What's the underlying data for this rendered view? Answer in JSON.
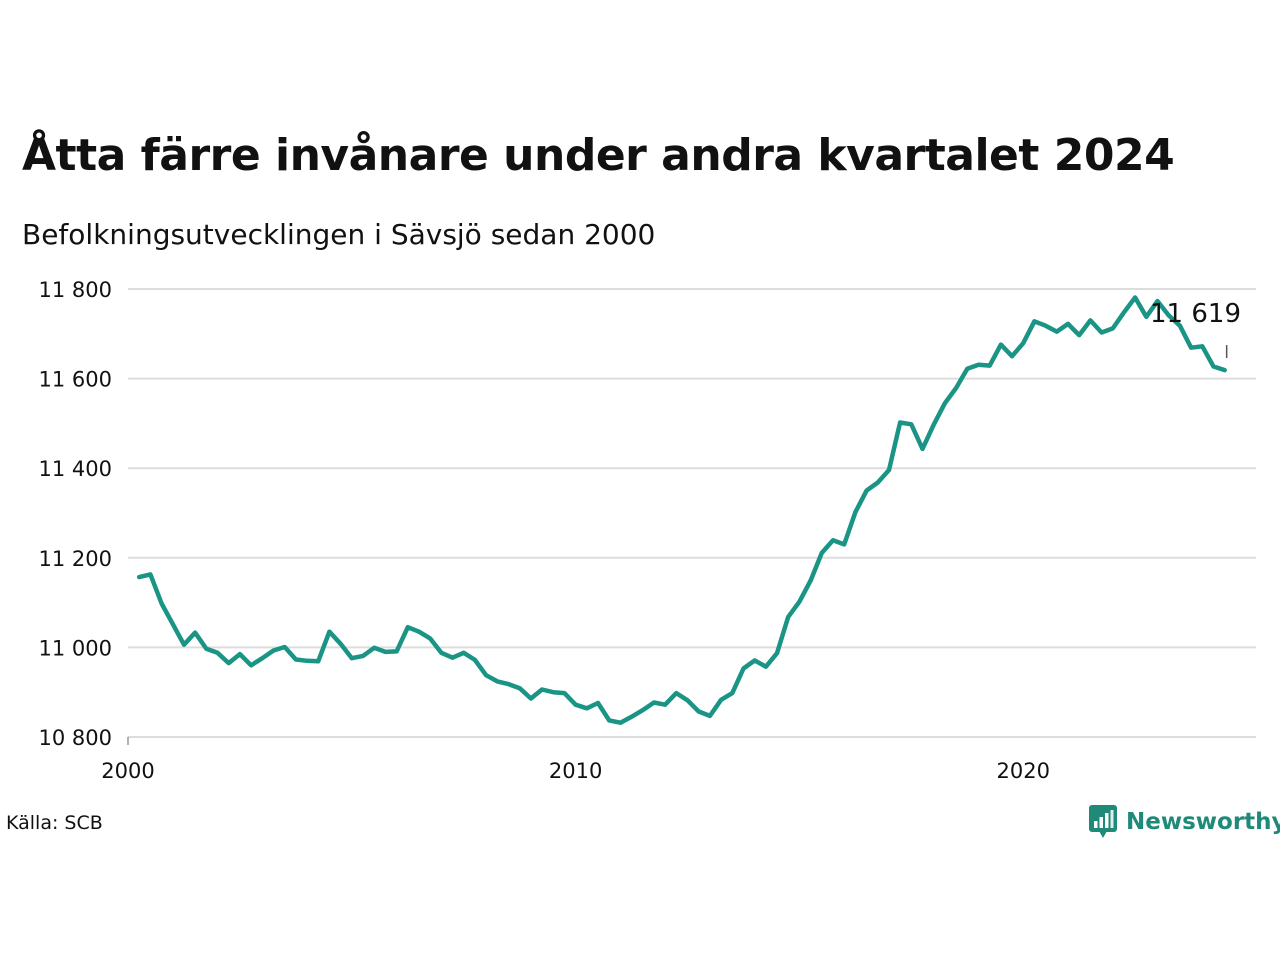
{
  "title": "Åtta färre invånare under andra kvartalet 2024",
  "subtitle": "Befolkningsutvecklingen i Sävsjö sedan 2000",
  "source": "Källa: SCB",
  "brand": "Newsworthy",
  "colors": {
    "line": "#1a9484",
    "grid": "#dddddd",
    "brand": "#1f8a79",
    "text": "#111111"
  },
  "chart_data": {
    "type": "line",
    "title": "Åtta färre invånare under andra kvartalet 2024",
    "subtitle": "Befolkningsutvecklingen i Sävsjö sedan 2000",
    "xlabel": "",
    "ylabel": "",
    "xlim": [
      2000,
      2025.2
    ],
    "ylim": [
      10800,
      11800
    ],
    "yticks": [
      10800,
      11000,
      11200,
      11400,
      11600,
      11800
    ],
    "ytick_labels": [
      "10 800",
      "11 000",
      "11 200",
      "11 400",
      "11 600",
      "11 800"
    ],
    "xticks": [
      2000,
      2010,
      2020
    ],
    "xtick_labels": [
      "2000",
      "2010",
      "2020"
    ],
    "grid": "horizontal",
    "end_label": "11 619",
    "series": [
      {
        "x": [
          2000.25,
          2000.5,
          2000.75,
          2001.0,
          2001.25,
          2001.5,
          2001.75,
          2002.0,
          2002.25,
          2002.5,
          2002.75,
          2003.0,
          2003.25,
          2003.5,
          2003.75,
          2004.0,
          2004.25,
          2004.5,
          2004.75,
          2005.0,
          2005.25,
          2005.5,
          2005.75,
          2006.0,
          2006.25,
          2006.5,
          2006.75,
          2007.0,
          2007.25,
          2007.5,
          2007.75,
          2008.0,
          2008.25,
          2008.5,
          2008.75,
          2009.0,
          2009.25,
          2009.5,
          2009.75,
          2010.0,
          2010.25,
          2010.5,
          2010.75,
          2011.0,
          2011.25,
          2011.5,
          2011.75,
          2012.0,
          2012.25,
          2012.5,
          2012.75,
          2013.0,
          2013.25,
          2013.5,
          2013.75,
          2014.0,
          2014.25,
          2014.5,
          2014.75,
          2015.0,
          2015.25,
          2015.5,
          2015.75,
          2016.0,
          2016.25,
          2016.5,
          2016.75,
          2017.0,
          2017.25,
          2017.5,
          2017.75,
          2018.0,
          2018.25,
          2018.5,
          2018.75,
          2019.0,
          2019.25,
          2019.5,
          2019.75,
          2020.0,
          2020.25,
          2020.5,
          2020.75,
          2021.0,
          2021.25,
          2021.5,
          2021.75,
          2022.0,
          2022.25,
          2022.5,
          2022.75,
          2023.0,
          2023.25,
          2023.5,
          2023.75,
          2024.0,
          2024.25,
          2024.5
        ],
        "values": [
          11157,
          11163,
          11098,
          11052,
          11006,
          11033,
          10997,
          10988,
          10965,
          10985,
          10960,
          10976,
          10993,
          11001,
          10973,
          10970,
          10969,
          11035,
          11008,
          10976,
          10981,
          10999,
          10990,
          10991,
          11045,
          11035,
          11020,
          10988,
          10977,
          10988,
          10972,
          10938,
          10924,
          10918,
          10909,
          10886,
          10906,
          10900,
          10898,
          10872,
          10864,
          10876,
          10837,
          10832,
          10845,
          10860,
          10877,
          10872,
          10898,
          10882,
          10857,
          10847,
          10883,
          10898,
          10953,
          10971,
          10957,
          10987,
          11068,
          11102,
          11149,
          11211,
          11239,
          11230,
          11302,
          11350,
          11368,
          11396,
          11502,
          11498,
          11443,
          11497,
          11545,
          11579,
          11622,
          11631,
          11629,
          11676,
          11650,
          11679,
          11728,
          11718,
          11705,
          11722,
          11697,
          11730,
          11703,
          11712,
          11748,
          11781,
          11738,
          11773,
          11741,
          11718,
          11669,
          11672,
          11627,
          11619
        ]
      }
    ]
  }
}
